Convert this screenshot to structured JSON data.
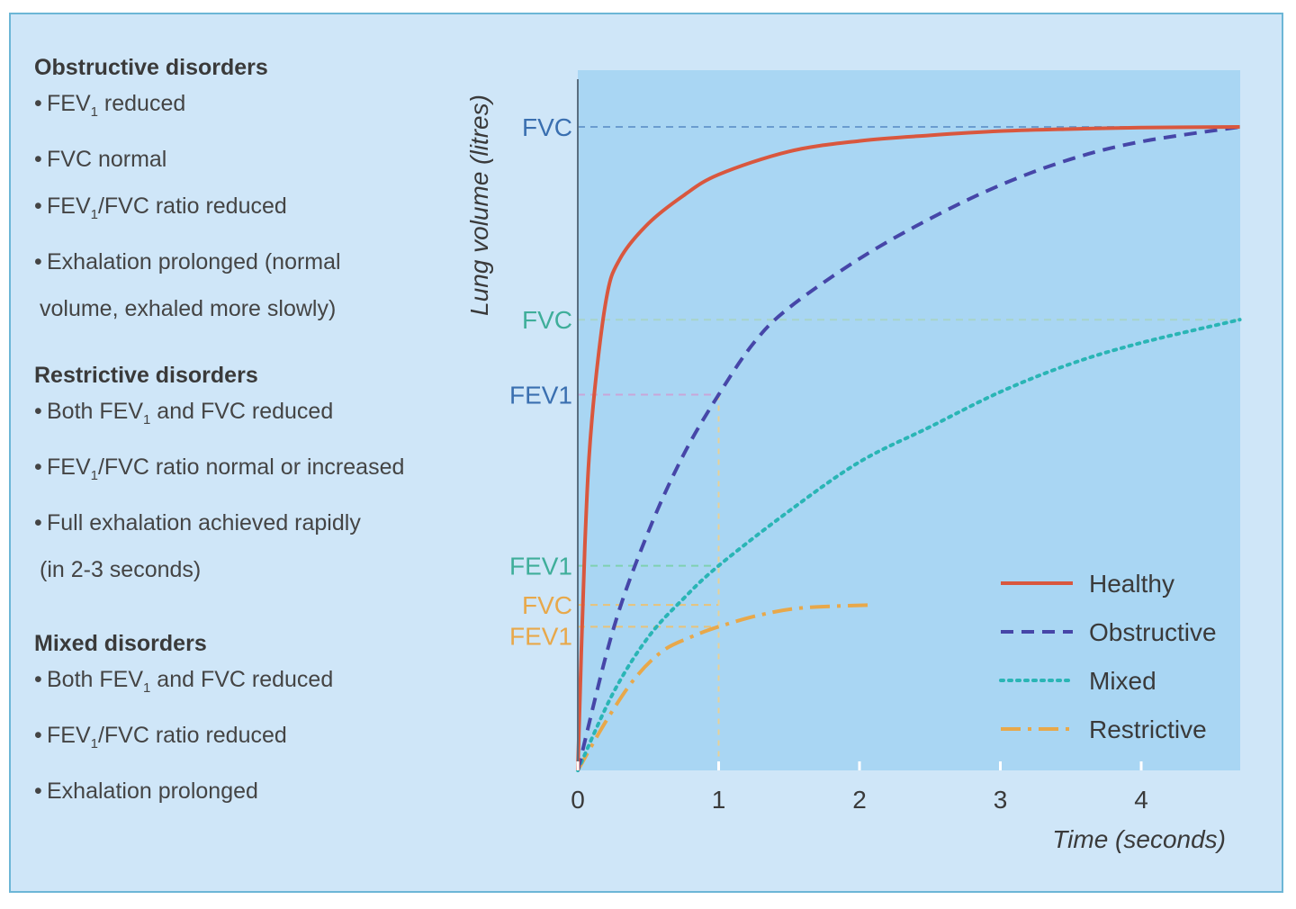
{
  "text_panel": {
    "sections": [
      {
        "heading": "Obstructive disorders",
        "bullets": [
          {
            "pre": "FEV",
            "sub": "1",
            "post": " reduced"
          },
          {
            "pre": "FVC normal",
            "sub": "",
            "post": ""
          },
          {
            "pre": "FEV",
            "sub": "1",
            "post": "/FVC ratio reduced"
          },
          {
            "pre": "Exhalation prolonged (normal",
            "sub": "",
            "post": "",
            "cont": "volume, exhaled more slowly)"
          }
        ]
      },
      {
        "heading": "Restrictive disorders",
        "bullets": [
          {
            "pre": "Both FEV",
            "sub": "1",
            "post": " and FVC reduced"
          },
          {
            "pre": "FEV",
            "sub": "1",
            "post": "/FVC ratio normal or increased"
          },
          {
            "pre": "Full exhalation achieved rapidly",
            "sub": "",
            "post": "",
            "cont": "(in 2-3 seconds)"
          }
        ]
      },
      {
        "heading": "Mixed disorders",
        "bullets": [
          {
            "pre": "Both FEV",
            "sub": "1",
            "post": " and FVC reduced"
          },
          {
            "pre": "FEV",
            "sub": "1",
            "post": "/FVC ratio reduced"
          },
          {
            "pre": "Exhalation prolonged",
            "sub": "",
            "post": ""
          }
        ]
      }
    ]
  },
  "chart_data": {
    "type": "line",
    "xlabel": "Time (seconds)",
    "ylabel": "Lung volume (litres)",
    "xlim": [
      0,
      4.7
    ],
    "ylim": [
      0,
      1
    ],
    "x_ticks": [
      0,
      1,
      2,
      3,
      4
    ],
    "y_tick_labels": [
      {
        "text": "FVC",
        "value": 0.918,
        "color": "#3a6fb0"
      },
      {
        "text": "FVC",
        "value": 0.643,
        "color": "#3fae9a"
      },
      {
        "text": "FEV1",
        "value": 0.536,
        "color": "#3a6fb0"
      },
      {
        "text": "FEV1",
        "value": 0.292,
        "color": "#3fae9a"
      },
      {
        "text": "FVC",
        "value": 0.236,
        "color": "#e8a84a"
      },
      {
        "text": "FEV1",
        "value": 0.192,
        "color": "#e8a84a"
      }
    ],
    "reference_lines": [
      {
        "y": 0.918,
        "x_end": 4.7,
        "color": "#6a9ccf"
      },
      {
        "y": 0.643,
        "x_end": 4.7,
        "color": "#a8d4c8"
      },
      {
        "y": 0.536,
        "x_end": 1.0,
        "color": "#c9a6d8"
      },
      {
        "y": 0.292,
        "x_end": 1.0,
        "color": "#7fd0b0"
      },
      {
        "y": 0.236,
        "x_end": 1.0,
        "color": "#e8c27a"
      },
      {
        "y": 0.205,
        "x_end": 1.0,
        "color": "#e8c27a"
      }
    ],
    "vertical_reference_x": 1.0,
    "series": [
      {
        "name": "Healthy",
        "color": "#d9573e",
        "dash": "solid",
        "x": [
          0,
          0.05,
          0.1,
          0.2,
          0.3,
          0.5,
          0.75,
          1.0,
          1.5,
          2.0,
          2.5,
          3.0,
          3.5,
          4.0,
          4.7
        ],
        "y": [
          0,
          0.32,
          0.5,
          0.67,
          0.73,
          0.78,
          0.82,
          0.85,
          0.883,
          0.898,
          0.906,
          0.912,
          0.915,
          0.917,
          0.918
        ]
      },
      {
        "name": "Obstructive",
        "color": "#4646a8",
        "dash": "dashed",
        "x": [
          0,
          0.25,
          0.5,
          0.75,
          1.0,
          1.25,
          1.5,
          2.0,
          2.5,
          3.0,
          3.5,
          4.0,
          4.7
        ],
        "y": [
          0,
          0.2,
          0.34,
          0.45,
          0.536,
          0.61,
          0.66,
          0.73,
          0.787,
          0.835,
          0.872,
          0.897,
          0.918
        ]
      },
      {
        "name": "Mixed",
        "color": "#2ab5b5",
        "dash": "dotted",
        "x": [
          0,
          0.25,
          0.5,
          0.75,
          1.0,
          1.5,
          2.0,
          2.5,
          3.0,
          3.5,
          4.0,
          4.7
        ],
        "y": [
          0,
          0.11,
          0.19,
          0.245,
          0.292,
          0.37,
          0.44,
          0.49,
          0.54,
          0.58,
          0.61,
          0.643
        ]
      },
      {
        "name": "Restrictive",
        "color": "#e8a84a",
        "dash": "dashdot",
        "x": [
          0,
          0.2,
          0.4,
          0.6,
          0.8,
          1.0,
          1.3,
          1.6,
          2.1
        ],
        "y": [
          0,
          0.07,
          0.13,
          0.17,
          0.19,
          0.205,
          0.222,
          0.232,
          0.236
        ]
      }
    ],
    "legend": {
      "position": "bottom-right"
    },
    "grid": false
  }
}
